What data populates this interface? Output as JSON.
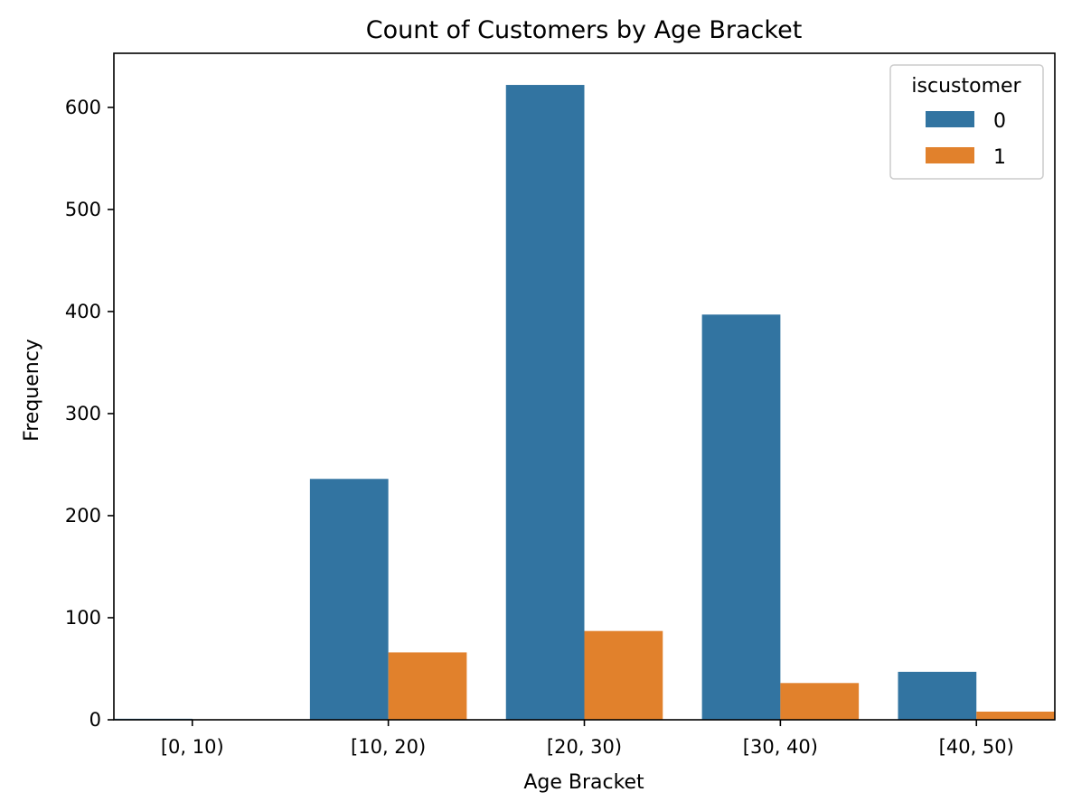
{
  "chart_data": {
    "type": "bar",
    "title": "Count of Customers by Age Bracket",
    "xlabel": "Age Bracket",
    "ylabel": "Frequency",
    "categories": [
      "[0, 10)",
      "[10, 20)",
      "[20, 30)",
      "[30, 40)",
      "[40, 50)"
    ],
    "series": [
      {
        "name": "0",
        "values": [
          1,
          236,
          622,
          397,
          47
        ],
        "color": "#3274a1"
      },
      {
        "name": "1",
        "values": [
          0,
          66,
          87,
          36,
          8
        ],
        "color": "#e1812c"
      }
    ],
    "ylim": [
      0,
      653
    ],
    "yticks": [
      0,
      100,
      200,
      300,
      400,
      500,
      600
    ],
    "legend": {
      "title": "iscustomer",
      "position": "top-right"
    },
    "grid": false
  }
}
